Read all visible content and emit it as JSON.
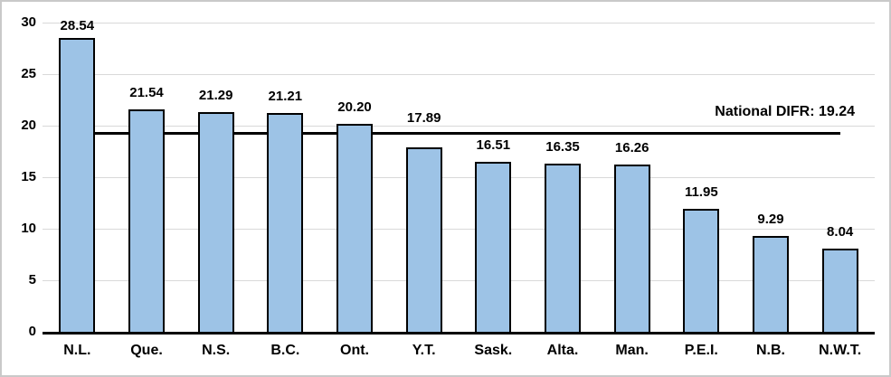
{
  "chart_data": {
    "type": "bar",
    "title": "",
    "xlabel": "",
    "ylabel": "",
    "categories": [
      "N.L.",
      "Que.",
      "N.S.",
      "B.C.",
      "Ont.",
      "Y.T.",
      "Sask.",
      "Alta.",
      "Man.",
      "P.E.I.",
      "N.B.",
      "N.W.T."
    ],
    "values": [
      28.54,
      21.54,
      21.29,
      21.21,
      20.2,
      17.89,
      16.51,
      16.35,
      16.26,
      11.95,
      9.29,
      8.04
    ],
    "value_labels": [
      "28.54",
      "21.54",
      "21.29",
      "21.21",
      "20.20",
      "17.89",
      "16.51",
      "16.35",
      "16.26",
      "11.95",
      "9.29",
      "8.04"
    ],
    "ylim": [
      0,
      30
    ],
    "yticks": [
      0,
      5,
      10,
      15,
      20,
      25,
      30
    ],
    "grid": "horizontal",
    "legend": "none",
    "reference_line": {
      "value": 19.24,
      "label": "National DIFR: 19.24"
    },
    "colors": {
      "bar_fill": "#9dc3e6",
      "bar_border": "#000000",
      "gridline": "#d9d9d9",
      "axis_line": "#000000",
      "reference_line": "#000000",
      "text": "#000000",
      "frame_border": "#c9c9c9",
      "background": "#ffffff"
    },
    "layout_hints": {
      "label_gap": 11,
      "label_lifts": {
        "0": -5,
        "5": 14
      }
    }
  }
}
